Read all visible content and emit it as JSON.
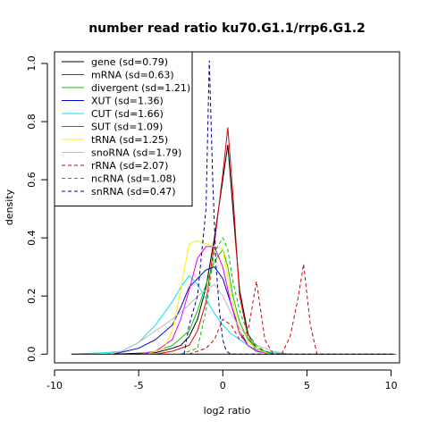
{
  "chart_data": {
    "type": "line",
    "title": "number read ratio ku70.G1.1/rrp6.G1.2",
    "xlabel": "log2 ratio",
    "ylabel": "density",
    "xlim": [
      -10,
      10.5
    ],
    "ylim": [
      -0.03,
      1.04
    ],
    "xticks": [
      -10,
      -5,
      0,
      5,
      10
    ],
    "yticks": [
      0.0,
      0.2,
      0.4,
      0.6,
      0.8,
      1.0
    ],
    "xtick_labels": [
      "-10",
      "-5",
      "0",
      "5",
      "10"
    ],
    "ytick_labels": [
      "0.0",
      "0.2",
      "0.4",
      "0.6",
      "0.8",
      "1.0"
    ],
    "legend_position": "top-left",
    "series": [
      {
        "name": "gene (sd=0.79)",
        "color": "#000000",
        "dash": false,
        "x": [
          -6.5,
          -4,
          -3,
          -2.5,
          -2,
          -1.5,
          -1,
          -0.5,
          0,
          0.3,
          0.6,
          1,
          1.5,
          2,
          3
        ],
        "y": [
          0,
          0.005,
          0.02,
          0.03,
          0.06,
          0.12,
          0.23,
          0.4,
          0.6,
          0.72,
          0.5,
          0.22,
          0.07,
          0.02,
          0
        ]
      },
      {
        "name": "mRNA (sd=0.63)",
        "color": "#df0000",
        "dash": false,
        "x": [
          -4,
          -3,
          -2,
          -1.5,
          -1,
          -0.5,
          0,
          0.3,
          0.6,
          1,
          1.5,
          2,
          3
        ],
        "y": [
          0,
          0.01,
          0.03,
          0.08,
          0.18,
          0.38,
          0.62,
          0.78,
          0.55,
          0.2,
          0.06,
          0.01,
          0
        ]
      },
      {
        "name": "divergent (sd=1.21)",
        "color": "#00cd00",
        "dash": false,
        "x": [
          -4.5,
          -4,
          -3,
          -2,
          -1.5,
          -1,
          -0.5,
          0,
          0.3,
          0.6,
          1,
          1.5,
          2,
          2.5,
          3
        ],
        "y": [
          0,
          0.01,
          0.03,
          0.08,
          0.15,
          0.24,
          0.32,
          0.36,
          0.3,
          0.2,
          0.11,
          0.05,
          0.02,
          0.005,
          0
        ]
      },
      {
        "name": "XUT (sd=1.36)",
        "color": "#0000cd",
        "dash": false,
        "x": [
          -6.5,
          -5,
          -4,
          -3,
          -2.5,
          -2,
          -1.5,
          -1,
          -0.5,
          0,
          0.5,
          1,
          1.5,
          2,
          3
        ],
        "y": [
          0,
          0.02,
          0.05,
          0.1,
          0.16,
          0.23,
          0.26,
          0.29,
          0.3,
          0.26,
          0.17,
          0.08,
          0.03,
          0.01,
          0
        ]
      },
      {
        "name": "CUT (sd=1.66)",
        "color": "#00e5ee",
        "dash": false,
        "x": [
          -9,
          -7,
          -6,
          -5,
          -4,
          -3,
          -2.5,
          -2,
          -1.5,
          -1,
          -0.5,
          0,
          0.5,
          1,
          1.5,
          2,
          3,
          4
        ],
        "y": [
          0,
          0.005,
          0.01,
          0.04,
          0.1,
          0.18,
          0.23,
          0.27,
          0.24,
          0.19,
          0.14,
          0.1,
          0.07,
          0.05,
          0.03,
          0.015,
          0.005,
          0
        ]
      },
      {
        "name": "SUT (sd=1.09)",
        "color": "#ee00ee",
        "dash": false,
        "x": [
          -5,
          -4,
          -3,
          -2.5,
          -2,
          -1.5,
          -1,
          -0.5,
          0,
          0.5,
          1,
          1.5,
          2,
          3
        ],
        "y": [
          0,
          0.01,
          0.05,
          0.12,
          0.22,
          0.33,
          0.37,
          0.37,
          0.3,
          0.17,
          0.07,
          0.03,
          0.01,
          0
        ]
      },
      {
        "name": "tRNA (sd=1.25)",
        "color": "#ffee00",
        "dash": false,
        "x": [
          -4.5,
          -3.5,
          -3,
          -2.5,
          -2,
          -1.5,
          -1,
          -0.5,
          0,
          0.5,
          1,
          1.5,
          2,
          2.5,
          3
        ],
        "y": [
          0,
          0.02,
          0.08,
          0.22,
          0.38,
          0.39,
          0.38,
          0.37,
          0.36,
          0.2,
          0.08,
          0.04,
          0.02,
          0.005,
          0
        ]
      },
      {
        "name": "snoRNA (sd=1.79)",
        "color": "#bbbbbb",
        "dash": false,
        "x": [
          -7,
          -6,
          -5,
          -4,
          -3,
          -2,
          -1.5,
          -1,
          -0.5,
          0,
          0.5,
          1,
          1.5,
          2,
          3,
          4
        ],
        "y": [
          0,
          0.01,
          0.04,
          0.08,
          0.12,
          0.17,
          0.2,
          0.22,
          0.24,
          0.2,
          0.14,
          0.09,
          0.06,
          0.03,
          0.01,
          0
        ]
      },
      {
        "name": "rRNA (sd=2.07)",
        "color": "#cd0000",
        "dash": true,
        "x": [
          -2,
          -1,
          -0.5,
          0,
          0.5,
          1,
          1.5,
          2,
          2.5,
          3,
          3.5,
          4,
          4.5,
          4.8,
          5.2,
          5.6
        ],
        "y": [
          0,
          0.02,
          0.05,
          0.12,
          0.1,
          0.05,
          0.08,
          0.25,
          0.05,
          0,
          0,
          0.06,
          0.2,
          0.31,
          0.1,
          0
        ]
      },
      {
        "name": "ncRNA (sd=1.08)",
        "color": "#00bb00",
        "dash": true,
        "x": [
          -2.5,
          -1.5,
          -1,
          -0.5,
          0,
          0.3,
          0.6,
          1,
          1.5,
          2,
          2.5,
          3
        ],
        "y": [
          0,
          0.02,
          0.15,
          0.35,
          0.4,
          0.36,
          0.25,
          0.15,
          0.07,
          0.03,
          0.01,
          0
        ]
      },
      {
        "name": "snRNA (sd=0.47)",
        "color": "#00008b",
        "dash": true,
        "x": [
          -2.3,
          -2,
          -1.5,
          -1,
          -0.8,
          -0.6,
          -0.4,
          -0.2,
          0,
          0.2,
          0.5,
          10.3
        ],
        "y": [
          0,
          0.1,
          0.2,
          0.5,
          1.01,
          0.6,
          0.3,
          0.15,
          0.05,
          0.01,
          0,
          0
        ]
      },
      {
        "name": "",
        "color": "#000000",
        "dash": false,
        "baseline": true,
        "x": [
          -9,
          10.2
        ],
        "y": [
          0,
          0
        ]
      }
    ]
  }
}
